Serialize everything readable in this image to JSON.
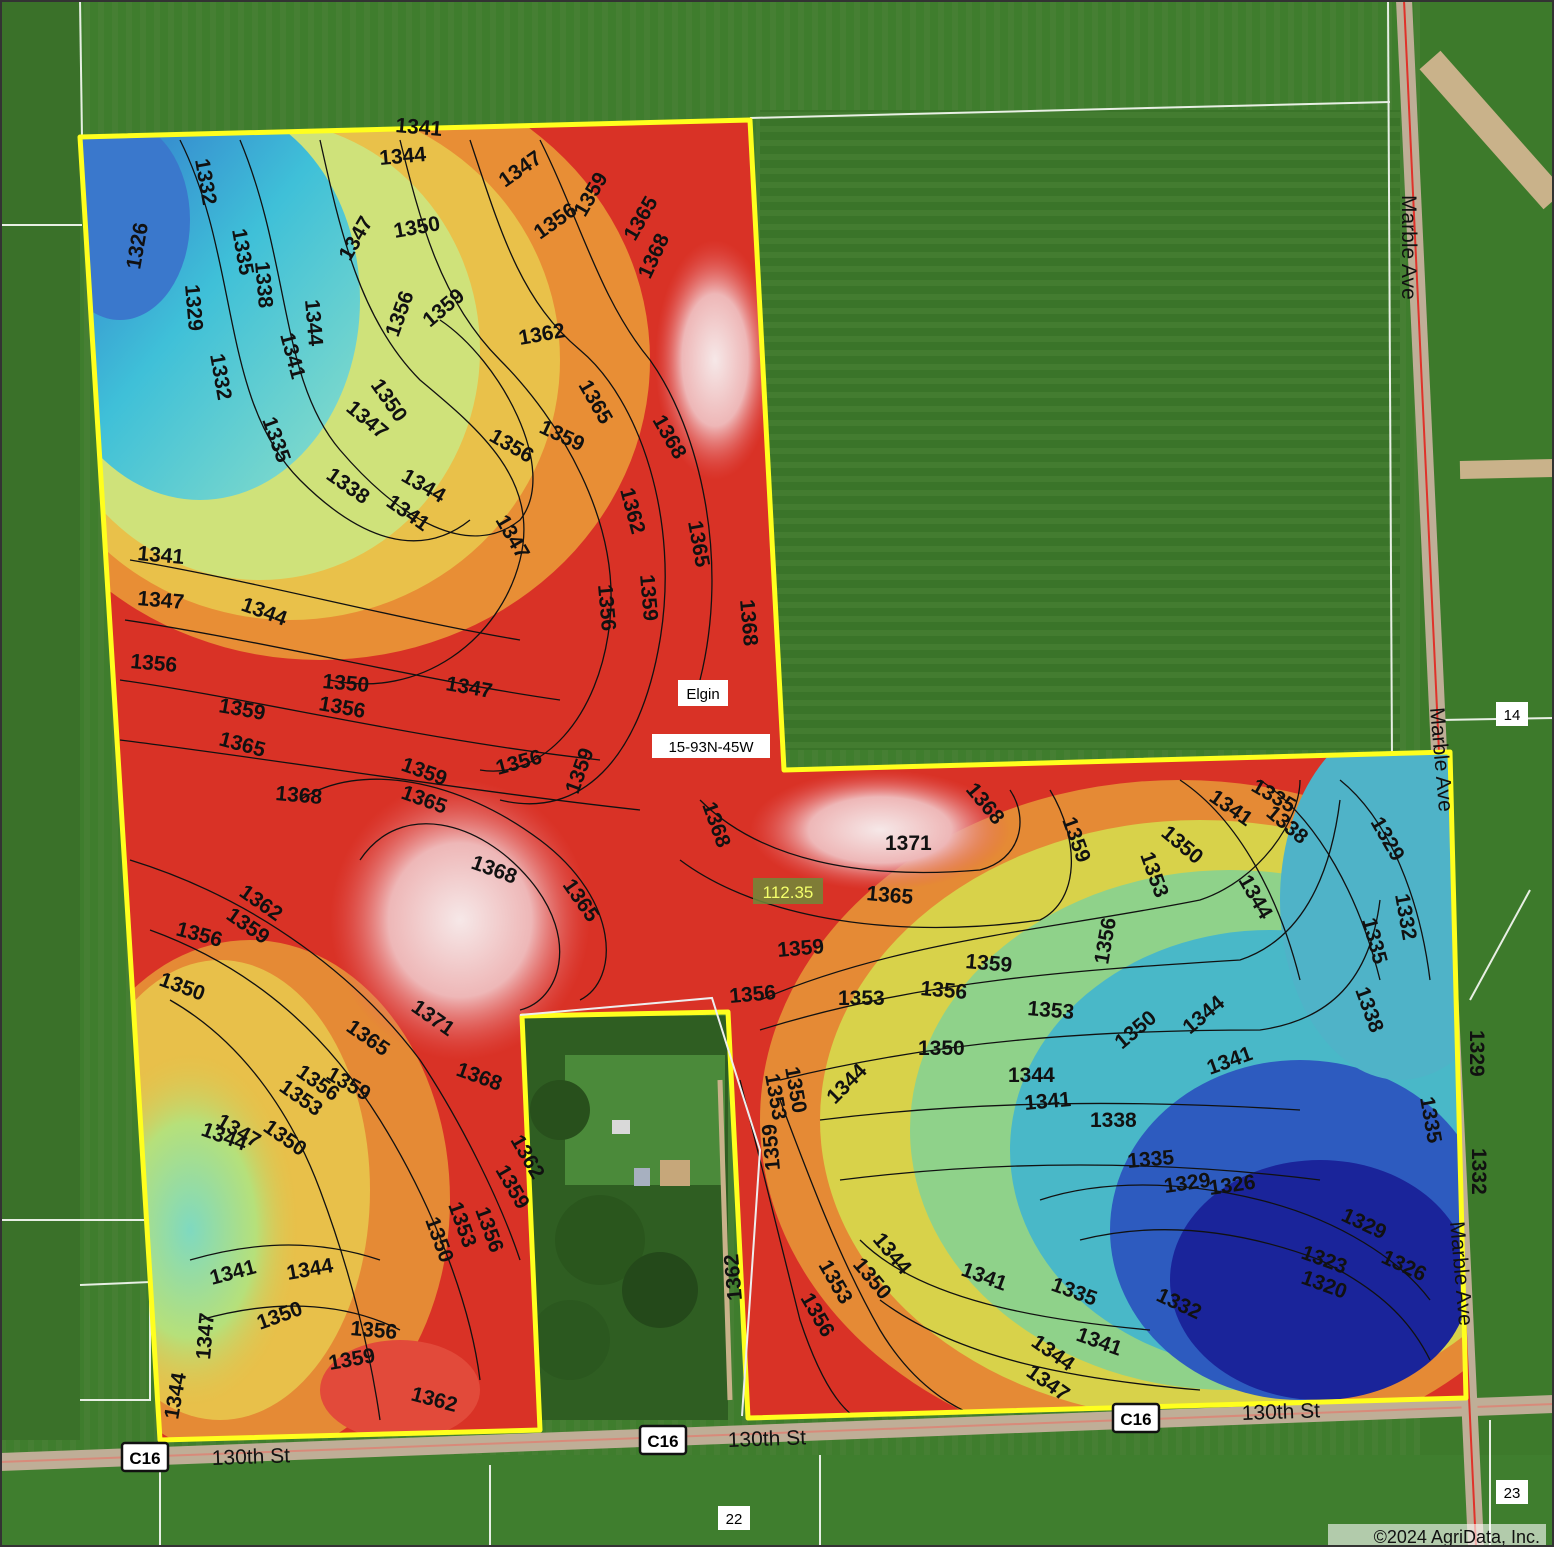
{
  "map": {
    "place_label": "Elgin",
    "section_label": "15-93N-45W",
    "acres_label": "112.35",
    "copyright": "©2024 AgriData, Inc.",
    "roads": {
      "east_road": "Marble Ave",
      "south_road": "130th St",
      "county_route": "C16"
    },
    "section_numbers": {
      "north_east": "14",
      "south": "22",
      "south_east": "23"
    },
    "colors": {
      "boundary": "#ffff1e",
      "contour_line": "#111111",
      "low_elevation": "#1a2fa8",
      "mid_elevation": "#e8e84a",
      "high_elevation": "#d81e1e",
      "peak_elevation": "#f2dede",
      "cropland": "#3e7a2c"
    },
    "contour_labels": [
      "1320",
      "1323",
      "1326",
      "1329",
      "1332",
      "1335",
      "1338",
      "1341",
      "1344",
      "1347",
      "1350",
      "1353",
      "1356",
      "1359",
      "1362",
      "1365",
      "1368",
      "1371"
    ]
  }
}
